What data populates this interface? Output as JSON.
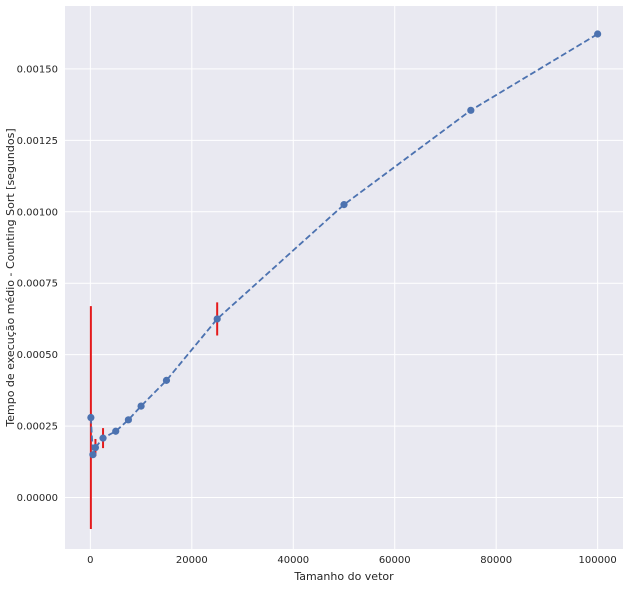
{
  "chart_data": {
    "type": "line",
    "title": "",
    "xlabel": "Tamanho do vetor",
    "ylabel": "Tempo de execução médio - Counting Sort [segundos]",
    "xlim": [
      -5000,
      105000
    ],
    "ylim": [
      -0.00018,
      0.00172
    ],
    "x_ticks": [
      0,
      20000,
      40000,
      60000,
      80000,
      100000
    ],
    "x_tick_labels": [
      "0",
      "20000",
      "40000",
      "60000",
      "80000",
      "100000"
    ],
    "y_ticks": [
      0.0,
      0.00025,
      0.0005,
      0.00075,
      0.001,
      0.00125,
      0.0015
    ],
    "y_tick_labels": [
      "0.00000",
      "0.00025",
      "0.00050",
      "0.00075",
      "0.00100",
      "0.00125",
      "0.00150"
    ],
    "grid": true,
    "background": "#e9e9f1",
    "grid_color": "#ffffff",
    "series": [
      {
        "line_style": "dashed",
        "marker": "circle",
        "color": "#4c72b0",
        "error_color": "#e41a1c",
        "x": [
          100,
          500,
          1000,
          2500,
          5000,
          7500,
          10000,
          15000,
          25000,
          50000,
          75000,
          100000
        ],
        "y": [
          0.00028,
          0.00015,
          0.000175,
          0.000208,
          0.000232,
          0.000272,
          0.00032,
          0.00041,
          0.000625,
          0.001025,
          0.001355,
          0.001622
        ],
        "yerr": [
          0.00039,
          1e-05,
          3e-05,
          3.5e-05,
          8e-06,
          8e-06,
          8e-06,
          8e-06,
          5.8e-05,
          8e-06,
          8e-06,
          8e-06
        ]
      }
    ]
  }
}
